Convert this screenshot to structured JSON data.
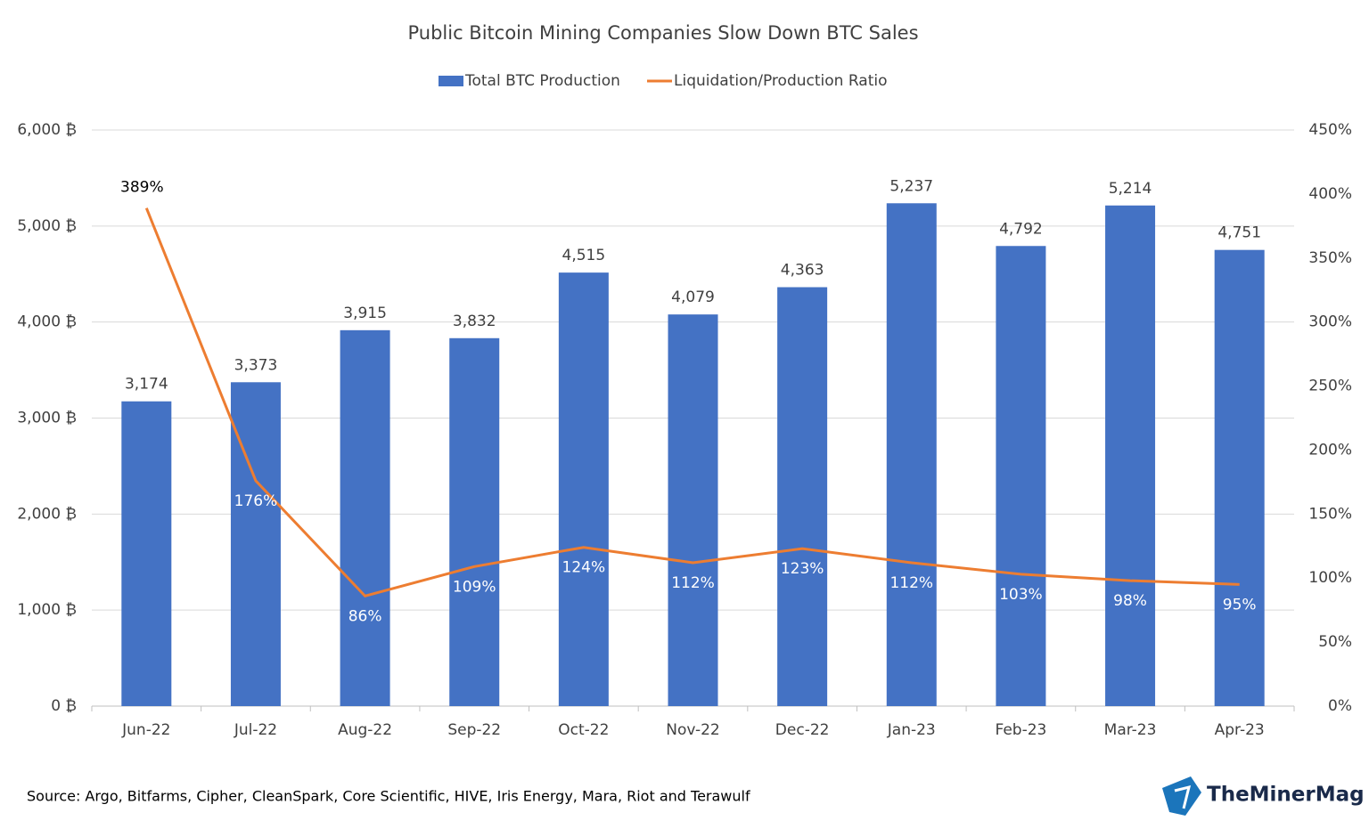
{
  "chart_data": {
    "type": "bar_line",
    "title": "Public Bitcoin Mining Companies Slow Down BTC Sales",
    "categories": [
      "Jun-22",
      "Jul-22",
      "Aug-22",
      "Sep-22",
      "Oct-22",
      "Nov-22",
      "Dec-22",
      "Jan-23",
      "Feb-23",
      "Mar-23",
      "Apr-23"
    ],
    "series": [
      {
        "name": "Total BTC Production",
        "type": "bar",
        "color": "#4472c4",
        "values": [
          3174,
          3373,
          3915,
          3832,
          4515,
          4079,
          4363,
          5237,
          4792,
          5214,
          4751
        ],
        "value_labels": [
          "3,174",
          "3,373",
          "3,915",
          "3,832",
          "4,515",
          "4,079",
          "4,363",
          "5,237",
          "4,792",
          "5,214",
          "4,751"
        ]
      },
      {
        "name": "Liquidation/Production Ratio",
        "type": "line",
        "axis": "y2",
        "color": "#ed7d31",
        "values": [
          389,
          176,
          86,
          109,
          124,
          112,
          123,
          112,
          103,
          98,
          95
        ],
        "value_labels": [
          "389%",
          "176%",
          "86%",
          "109%",
          "124%",
          "112%",
          "123%",
          "112%",
          "103%",
          "98%",
          "95%"
        ]
      }
    ],
    "ylim": [
      0,
      6000
    ],
    "yticks": [
      {
        "value": 0,
        "label": "0 ₿"
      },
      {
        "value": 1000,
        "label": "1,000 ₿"
      },
      {
        "value": 2000,
        "label": "2,000 ₿"
      },
      {
        "value": 3000,
        "label": "3,000 ₿"
      },
      {
        "value": 4000,
        "label": "4,000 ₿"
      },
      {
        "value": 5000,
        "label": "5,000 ₿"
      },
      {
        "value": 6000,
        "label": "6,000 ₿"
      }
    ],
    "y2lim": [
      0,
      450
    ],
    "y2ticks": [
      {
        "value": 0,
        "label": "0%"
      },
      {
        "value": 50,
        "label": "50%"
      },
      {
        "value": 100,
        "label": "100%"
      },
      {
        "value": 150,
        "label": "150%"
      },
      {
        "value": 200,
        "label": "200%"
      },
      {
        "value": 250,
        "label": "250%"
      },
      {
        "value": 300,
        "label": "300%"
      },
      {
        "value": 350,
        "label": "350%"
      },
      {
        "value": 400,
        "label": "400%"
      },
      {
        "value": 450,
        "label": "450%"
      }
    ],
    "grid": true,
    "legend": "top",
    "source": "Source: Argo, Bitfarms, Cipher, CleanSpark, Core Scientific, HIVE, Iris Energy, Mara, Riot and Terawulf",
    "brand": "TheMinerMag"
  }
}
